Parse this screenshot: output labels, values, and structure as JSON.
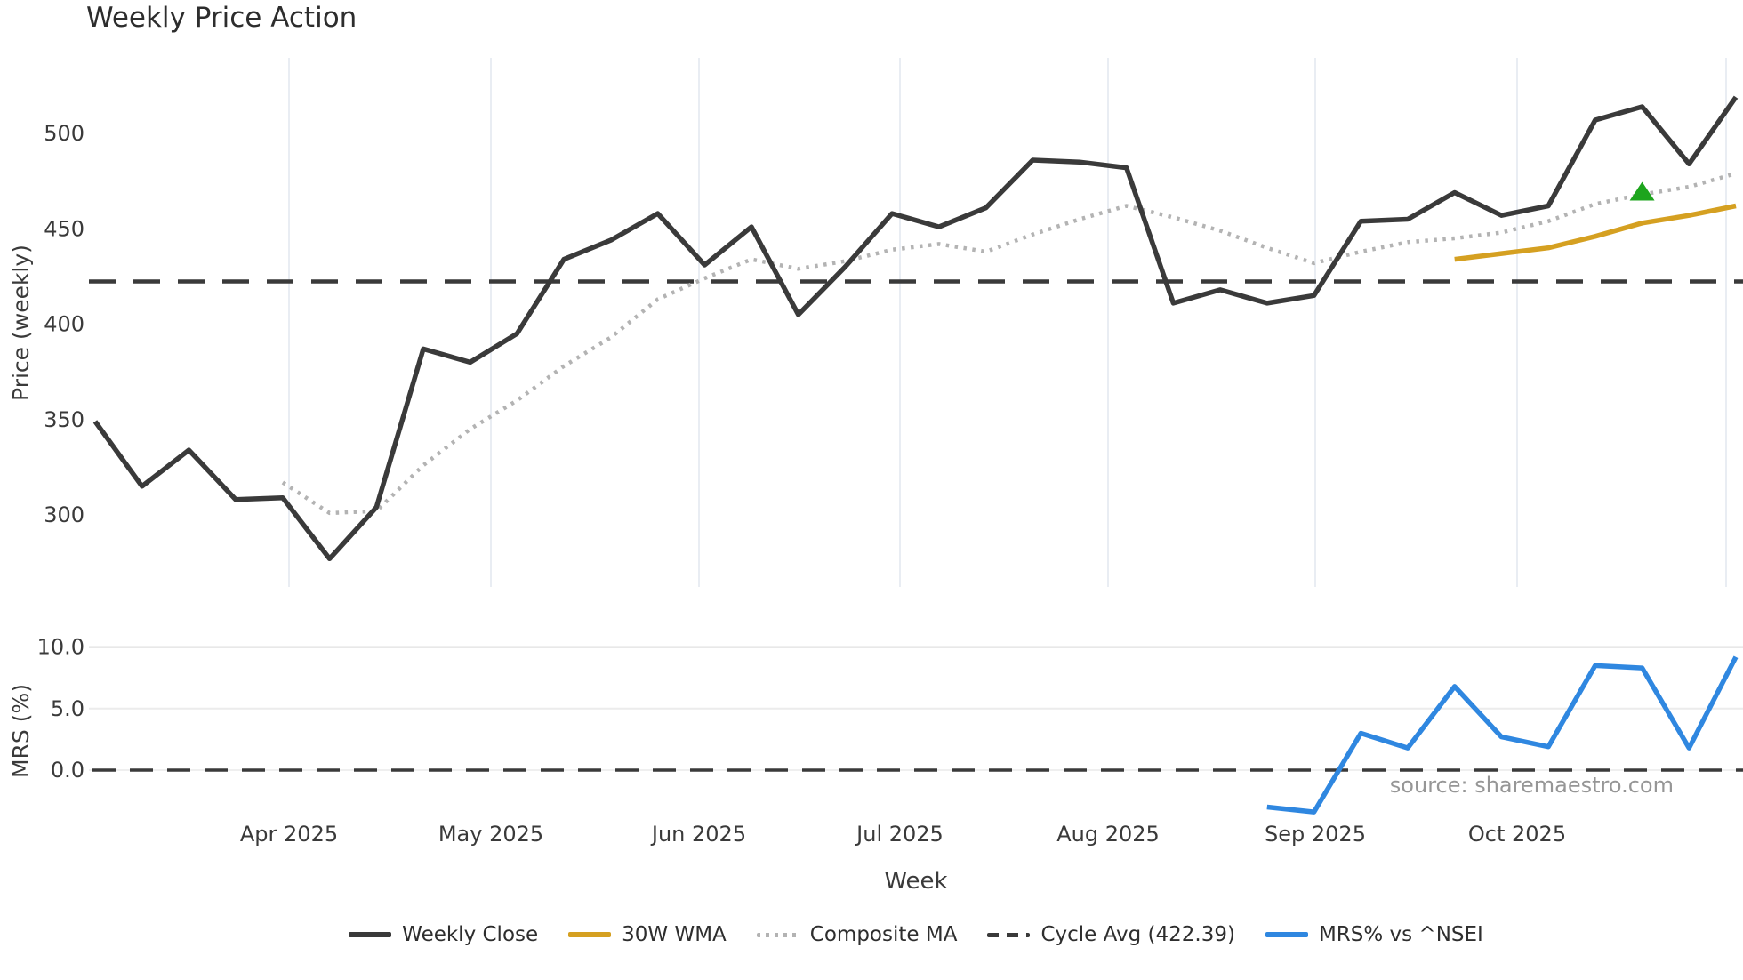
{
  "title": "Weekly Price Action",
  "source_watermark": "source: sharemaestro.com",
  "legend": {
    "items": [
      {
        "label": "Weekly Close",
        "style": "solid",
        "color": "#3a3a3a"
      },
      {
        "label": "30W WMA",
        "style": "solid",
        "color": "#d5a021"
      },
      {
        "label": "Composite MA",
        "style": "dotted",
        "color": "#b3b3b3"
      },
      {
        "label": "Cycle Avg (422.39)",
        "style": "dashed",
        "color": "#3a3a3a"
      },
      {
        "label": "MRS% vs ^NSEI",
        "style": "solid",
        "color": "#2f87e0"
      }
    ]
  },
  "chart_data": [
    {
      "type": "line",
      "panel": "price",
      "title": "Weekly Price Action",
      "xlabel": "Week",
      "ylabel": "Price (weekly)",
      "x_tick_labels": [
        "Apr 2025",
        "May 2025",
        "Jun 2025",
        "Jul 2025",
        "Aug 2025",
        "Sep 2025",
        "Oct 2025"
      ],
      "y_ticks": [
        300,
        350,
        400,
        450,
        500
      ],
      "y_tick_labels": [
        "300",
        "350",
        "400",
        "450",
        "500"
      ],
      "ylim": [
        258,
        540
      ],
      "grid": "vertical-monthly",
      "legend_position": "bottom-center",
      "weeks": [
        "2025-03-03",
        "2025-03-10",
        "2025-03-17",
        "2025-03-24",
        "2025-03-31",
        "2025-04-07",
        "2025-04-14",
        "2025-04-21",
        "2025-04-28",
        "2025-05-05",
        "2025-05-12",
        "2025-05-19",
        "2025-05-26",
        "2025-06-02",
        "2025-06-09",
        "2025-06-16",
        "2025-06-23",
        "2025-06-30",
        "2025-07-07",
        "2025-07-14",
        "2025-07-21",
        "2025-07-28",
        "2025-08-04",
        "2025-08-11",
        "2025-08-18",
        "2025-08-25",
        "2025-09-01",
        "2025-09-08",
        "2025-09-15",
        "2025-09-22",
        "2025-09-29",
        "2025-10-06",
        "2025-10-13",
        "2025-10-20",
        "2025-10-27",
        "2025-11-03"
      ],
      "series": [
        {
          "name": "Weekly Close",
          "type": "line",
          "dash": "solid",
          "color": "#3a3a3a",
          "start_week": 0,
          "values": [
            349,
            315,
            334,
            308,
            309,
            277,
            304,
            387,
            380,
            395,
            434,
            444,
            458,
            431,
            451,
            405,
            430,
            458,
            451,
            461,
            486,
            485,
            482,
            411,
            418,
            411,
            415,
            454,
            455,
            469,
            457,
            462,
            507,
            514,
            484,
            519
          ]
        },
        {
          "name": "30W WMA",
          "type": "line",
          "dash": "solid",
          "color": "#d5a021",
          "start_week": 29,
          "values": [
            434,
            437,
            440,
            446,
            453,
            457,
            462
          ]
        },
        {
          "name": "Composite MA",
          "type": "line",
          "dash": "dotted",
          "color": "#b3b3b3",
          "start_week": 4,
          "values": [
            317,
            301,
            302,
            326,
            345,
            360,
            378,
            393,
            413,
            424,
            434,
            429,
            433,
            439,
            442,
            438,
            447,
            455,
            462,
            456,
            449,
            440,
            432,
            438,
            443,
            445,
            448,
            454,
            463,
            468,
            472,
            479
          ]
        },
        {
          "name": "Cycle Avg (422.39)",
          "type": "hline",
          "dash": "dashed",
          "color": "#3a3a3a",
          "value": 422.39
        }
      ],
      "annotations": [
        {
          "type": "marker",
          "shape": "triangle-up",
          "color": "#1da51d",
          "week": 33,
          "value": 469
        }
      ]
    },
    {
      "type": "line",
      "panel": "mrs",
      "ylabel": "MRS (%)",
      "y_ticks": [
        0,
        5,
        10
      ],
      "y_tick_labels": [
        "0.0",
        "5.0",
        "10.0"
      ],
      "ylim": [
        -4.6,
        10.6
      ],
      "zero_line": 0,
      "watermark": "source: sharemaestro.com",
      "series": [
        {
          "name": "MRS% vs ^NSEI",
          "type": "line",
          "dash": "solid",
          "color": "#2f87e0",
          "start_week": 25,
          "values": [
            -3.0,
            -3.4,
            3.0,
            1.8,
            6.8,
            2.7,
            1.9,
            8.5,
            8.3,
            1.8,
            9.2
          ]
        }
      ]
    }
  ]
}
